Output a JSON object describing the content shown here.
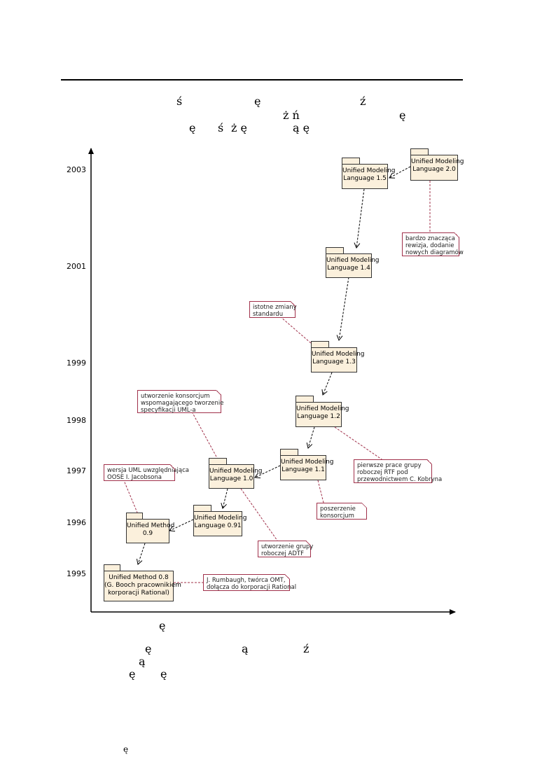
{
  "header_glyphs": [
    {
      "id": "g1",
      "text": "ś"
    },
    {
      "id": "g2",
      "text": "ę"
    },
    {
      "id": "g3",
      "text": "ź"
    },
    {
      "id": "g4",
      "text": "ż ń"
    },
    {
      "id": "g5",
      "text": "ę"
    },
    {
      "id": "g6",
      "text": "ę"
    },
    {
      "id": "g7",
      "text": "ś"
    },
    {
      "id": "g8",
      "text": "ż ę"
    },
    {
      "id": "g9",
      "text": "ą ę"
    }
  ],
  "footer_glyphs": [
    {
      "id": "f1",
      "text": "ę"
    },
    {
      "id": "f2",
      "text": "ę"
    },
    {
      "id": "f3",
      "text": "ą"
    },
    {
      "id": "f4",
      "text": "ź"
    },
    {
      "id": "f5",
      "text": "ą"
    },
    {
      "id": "f6",
      "text": "ę"
    },
    {
      "id": "f7",
      "text": "ę"
    },
    {
      "id": "f8",
      "text": "ę"
    }
  ],
  "years": [
    "2003",
    "2001",
    "1999",
    "1998",
    "1997",
    "1996",
    "1995"
  ],
  "packages": {
    "uml15": [
      "Unified Modeling",
      "Language 1.5"
    ],
    "uml20": [
      "Unified Modeling",
      "Language 2.0"
    ],
    "uml14": [
      "Unified Modeling",
      "Language 1.4"
    ],
    "uml13": [
      "Unified Modeling",
      "Language 1.3"
    ],
    "uml12": [
      "Unified Modeling",
      "Language 1.2"
    ],
    "uml11": [
      "Unified Modeling",
      "Language 1.1"
    ],
    "uml10": [
      "Unified Modeling",
      "Language 1.0"
    ],
    "uml091": [
      "Unified Modeling",
      "Language 0.91"
    ],
    "um09": [
      "Unified Method",
      "0.9"
    ],
    "um08": [
      "Unified Method 0.8",
      "",
      "(G. Booch pracownikiem",
      "korporacji Rational)"
    ]
  },
  "notes": {
    "n20": [
      "bardzo znacząca",
      "rewizja, dodanie",
      "nowych diagramów"
    ],
    "n13": [
      "istotne zmiany",
      "standardu"
    ],
    "n10": [
      "utworzenie konsorcjum",
      "wspomagającego tworzenie",
      "specyfikacji UML-a"
    ],
    "n12": [
      "pierwsze prace grupy",
      "roboczej RTF pod",
      "przewodnictwem C. Kobryna"
    ],
    "n09": [
      "wersja UML uwzględniająca",
      "OOSE I. Jacobsona"
    ],
    "n11": [
      "poszerzenie",
      "konsorcjum"
    ],
    "n091": [
      "utworzenie grupy",
      "roboczej ADTF"
    ],
    "n08": [
      "J. Rumbaugh, twórca OMT,",
      "dołącza do korporacji Rational"
    ]
  },
  "colors": {
    "package_fill": "#fbf0dc",
    "note_border": "#a0304a",
    "arrow": "#000000"
  }
}
